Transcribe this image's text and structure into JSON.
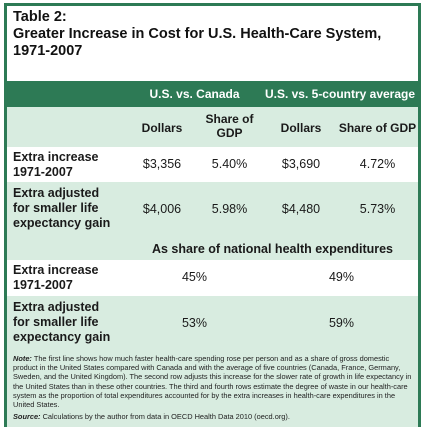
{
  "title": {
    "line1": "Table 2:",
    "line2": "Greater Increase in Cost for U.S. Health-Care System,",
    "line3": "1971-2007"
  },
  "groups": {
    "canada": "U.S. vs. Canada",
    "avg5": "U.S. vs. 5-country average"
  },
  "columns": {
    "dollars": "Dollars",
    "share_gdp_l1": "Share of",
    "share_gdp_l2": "GDP",
    "share_gdp_full": "Share of GDP"
  },
  "rows": [
    {
      "label1": "Extra increase",
      "label2": "1971-2007",
      "label3": "",
      "canada_dollars": "$3,356",
      "canada_share": "5.40%",
      "avg_dollars": "$3,690",
      "avg_share": "4.72%"
    },
    {
      "label1": "Extra adjusted",
      "label2": "for smaller life",
      "label3": "expectancy gain",
      "canada_dollars": "$4,006",
      "canada_share": "5.98%",
      "avg_dollars": "$4,480",
      "avg_share": "5.73%"
    }
  ],
  "section": "As share of national health expenditures",
  "share_rows": [
    {
      "label1": "Extra increase",
      "label2": "1971-2007",
      "label3": "",
      "canada": "45%",
      "avg": "49%"
    },
    {
      "label1": "Extra adjusted",
      "label2": "for smaller life",
      "label3": "expectancy gain",
      "canada": "53%",
      "avg": "59%"
    }
  ],
  "note": {
    "label": "Note:",
    "text": "The first line shows how much faster health-care spending rose per person and as a share of gross domestic product in the United States compared with Canada and with the average of five countries (Canada, France, Germany, Sweden, and the United Kingdom). The second row adjusts this increase for the slower rate of growth in life expectancy in the United States than in these other countries. The third and fourth rows estimate the degree of waste in our health-care system as the proportion of total expenditures accounted for by the extra increases in health-care expenditures in the United States."
  },
  "source": {
    "label": "Source:",
    "text": "Calculations by the author from data in OECD Health Data 2010 (oecd.org)."
  },
  "colors": {
    "accent_green": "#2d7a55",
    "light_green": "#d8ece0"
  }
}
